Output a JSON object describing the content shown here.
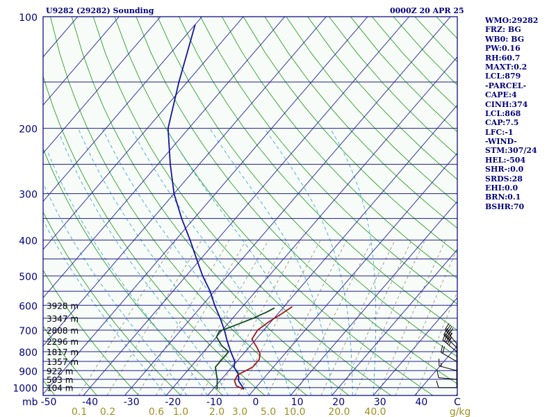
{
  "header": {
    "station": "U9282 (29282) Sounding",
    "time": "0000Z 20 APR 25"
  },
  "stats": [
    "WMO:29282",
    "FRZ: BG",
    "WB0: BG",
    "PW:0.16",
    "RH:60.7",
    "MAXT:0.2",
    "LCL:879",
    "-PARCEL-",
    "CAPE:4",
    "CINH:374",
    "LCL:868",
    "CAP:7.5",
    "LFC:-1",
    "-WIND-",
    "STM:307/24",
    "HEL:-504",
    "SHR-:0.0",
    "SRDS:28",
    "EHI:0.0",
    "BRN:0.1",
    "BSHR:70"
  ],
  "colors": {
    "frame": "#00007a",
    "isobar": "#1c1c8c",
    "isotherm": "#1f1f9c",
    "dry_adiabat": "#28a028",
    "moist_adiabat": "#38a9d8",
    "mixing_ratio": "#8a8a70",
    "temperature": "#a01818",
    "dewpoint": "#104a1c",
    "parcel": "#1414a0",
    "wind": "#000000",
    "text": "#00007a",
    "mixing_ratio_labels": "#a09020"
  },
  "chart_data": {
    "type": "skew-t",
    "title": "U9282 (29282) Sounding",
    "time": "0000Z 20 APR 25",
    "xlabel": "C",
    "x_unit_label": "mb",
    "mixing_ratio_unit": "g/kg",
    "pressure_labels": [
      "100",
      "200",
      "300",
      "400",
      "500",
      "600",
      "700",
      "800",
      "900",
      "1000"
    ],
    "pressure_values": [
      100,
      200,
      300,
      400,
      500,
      600,
      700,
      800,
      900,
      1000
    ],
    "temperature_ticks": [
      "-50",
      "-40",
      "-30",
      "-20",
      "-10",
      "0",
      "10",
      "20",
      "30",
      "40"
    ],
    "temperature_tick_values": [
      -50,
      -40,
      -30,
      -20,
      -10,
      0,
      10,
      20,
      30,
      40
    ],
    "mixing_ratio_labels": [
      "0.1",
      "0.2",
      "0.6",
      "1.0",
      "2.0",
      "3.0",
      "5.0",
      "10.0",
      "20.0",
      "40.0"
    ],
    "height_labels": [
      {
        "p": 600,
        "text": "3928 m"
      },
      {
        "p": 650,
        "text": "3347 m"
      },
      {
        "p": 700,
        "text": "2808 m"
      },
      {
        "p": 750,
        "text": "2296 m"
      },
      {
        "p": 800,
        "text": "1817 m"
      },
      {
        "p": 850,
        "text": "1357 m"
      },
      {
        "p": 900,
        "text": "922 m"
      },
      {
        "p": 950,
        "text": "503 m"
      },
      {
        "p": 1000,
        "text": "104 m"
      }
    ],
    "series": [
      {
        "name": "temperature",
        "points": [
          [
            1010,
            -2.5
          ],
          [
            990,
            -5
          ],
          [
            960,
            -6.5
          ],
          [
            925,
            -7
          ],
          [
            880,
            -5
          ],
          [
            840,
            -5
          ],
          [
            810,
            -6
          ],
          [
            780,
            -8
          ],
          [
            740,
            -11
          ],
          [
            700,
            -11.5
          ],
          [
            665,
            -10.5
          ],
          [
            630,
            -9
          ],
          [
            605,
            -8
          ]
        ]
      },
      {
        "name": "dewpoint",
        "points": [
          [
            1010,
            -9
          ],
          [
            980,
            -10
          ],
          [
            950,
            -11
          ],
          [
            915,
            -12.5
          ],
          [
            880,
            -14
          ],
          [
            830,
            -14
          ],
          [
            800,
            -14
          ],
          [
            770,
            -17
          ],
          [
            730,
            -20
          ],
          [
            705,
            -20.5
          ],
          [
            680,
            -18
          ],
          [
            650,
            -15
          ],
          [
            625,
            -13
          ],
          [
            610,
            -12
          ]
        ]
      },
      {
        "name": "parcel",
        "points": [
          [
            1010,
            -2.5
          ],
          [
            960,
            -5.5
          ],
          [
            920,
            -7
          ],
          [
            880,
            -9.5
          ],
          [
            850,
            -10.5
          ],
          [
            800,
            -13.5
          ],
          [
            750,
            -16.5
          ],
          [
            700,
            -19.5
          ],
          [
            650,
            -23
          ],
          [
            600,
            -27
          ],
          [
            550,
            -31
          ],
          [
            500,
            -36
          ],
          [
            450,
            -41
          ],
          [
            400,
            -46.5
          ],
          [
            350,
            -53
          ],
          [
            300,
            -60
          ],
          [
            250,
            -67
          ],
          [
            200,
            -75
          ],
          [
            150,
            -82
          ],
          [
            120,
            -87
          ],
          [
            105,
            -90
          ]
        ]
      }
    ],
    "wind_barbs": [
      {
        "p": 1000,
        "dir": 270,
        "speed": 10
      },
      {
        "p": 950,
        "dir": 275,
        "speed": 10
      },
      {
        "p": 900,
        "dir": 285,
        "speed": 15
      },
      {
        "p": 850,
        "dir": 300,
        "speed": 20
      },
      {
        "p": 800,
        "dir": 310,
        "speed": 45
      },
      {
        "p": 780,
        "dir": 315,
        "speed": 45
      },
      {
        "p": 760,
        "dir": 320,
        "speed": 45
      }
    ],
    "xlim": [
      -50,
      50
    ],
    "ylim": [
      1050,
      100
    ],
    "log_pressure": true,
    "grid": true
  }
}
